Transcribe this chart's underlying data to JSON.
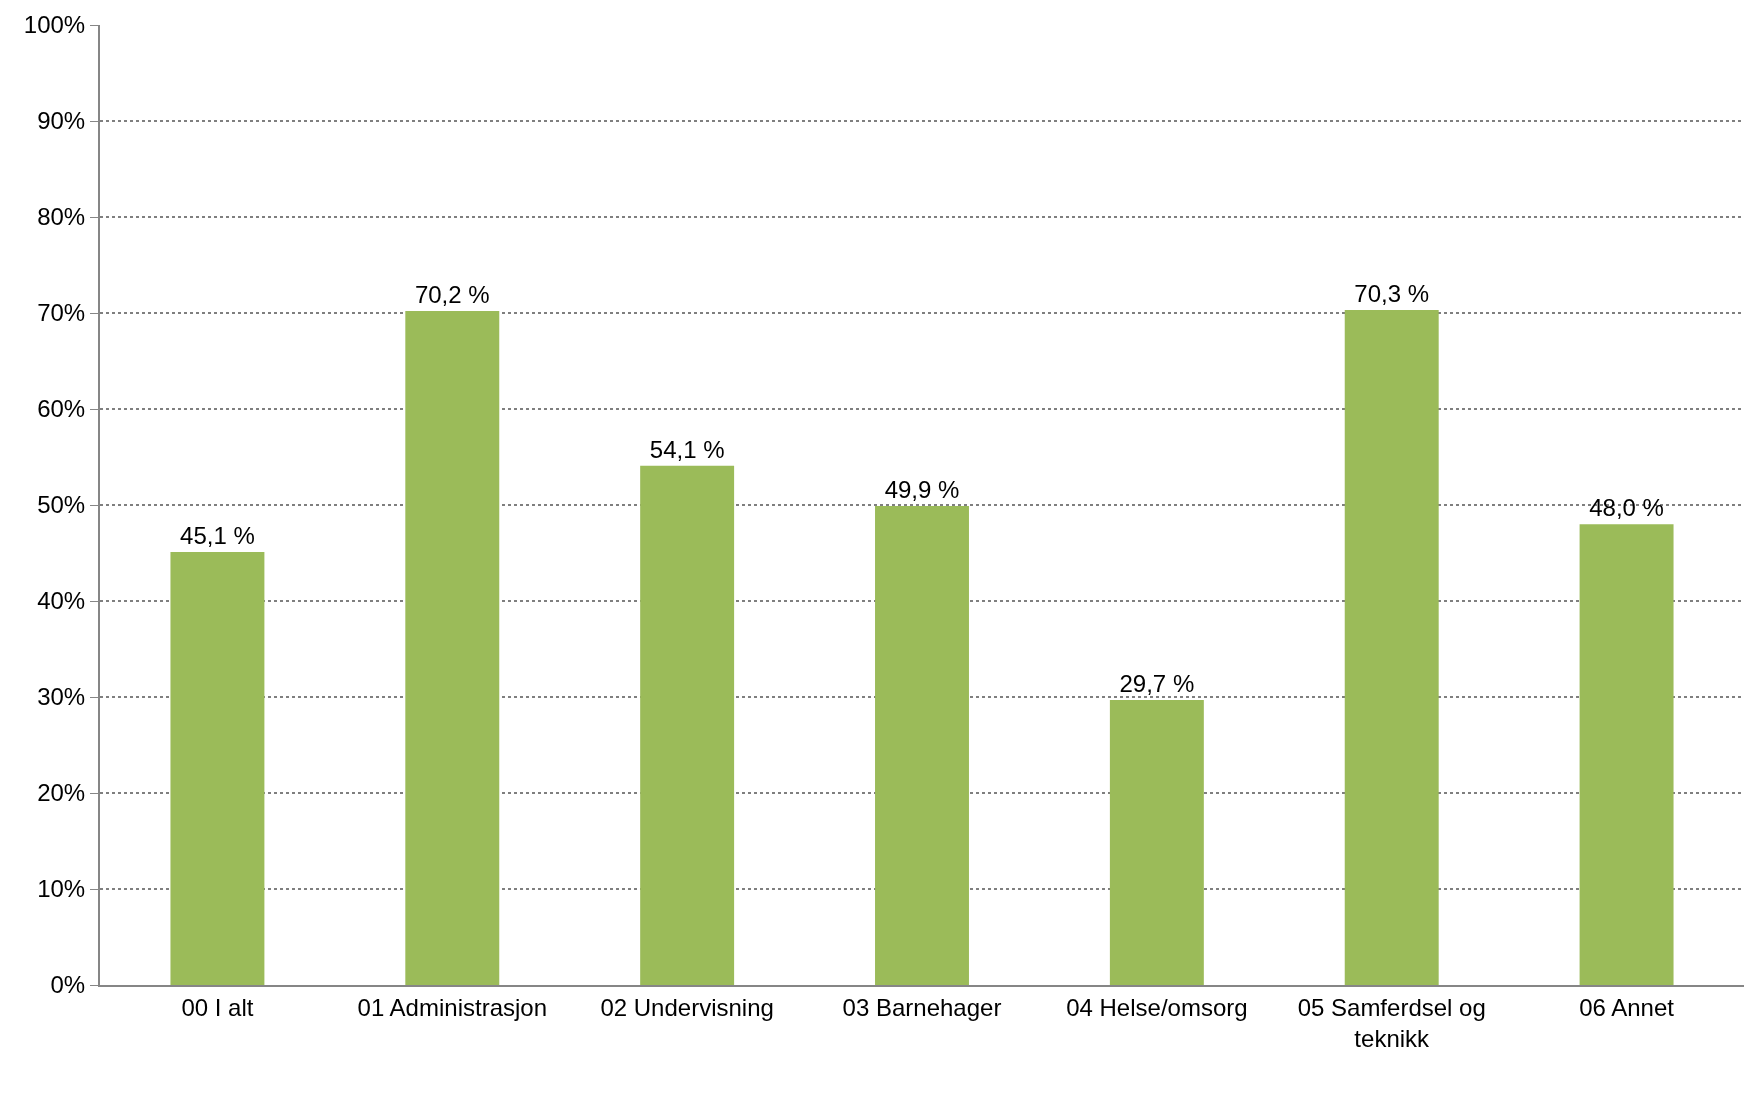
{
  "chart_data": {
    "type": "bar",
    "categories": [
      "00 I alt",
      "01 Administrasjon",
      "02 Undervisning",
      "03 Barnehager",
      "04 Helse/omsorg",
      "05 Samferdsel og teknikk",
      "06 Annet"
    ],
    "values": [
      45.1,
      70.2,
      54.1,
      49.9,
      29.7,
      70.3,
      48.0
    ],
    "value_labels": [
      "45,1 %",
      "70,2 %",
      "54,1 %",
      "49,9 %",
      "29,7 %",
      "70,3 %",
      "48,0 %"
    ],
    "color": "#9bbb59",
    "ylim": [
      0,
      100
    ],
    "yticks": [
      {
        "value": 0,
        "label": "0%"
      },
      {
        "value": 10,
        "label": "10%"
      },
      {
        "value": 20,
        "label": "20%"
      },
      {
        "value": 30,
        "label": "30%"
      },
      {
        "value": 40,
        "label": "40%"
      },
      {
        "value": 50,
        "label": "50%"
      },
      {
        "value": 60,
        "label": "60%"
      },
      {
        "value": 70,
        "label": "70%"
      },
      {
        "value": 80,
        "label": "80%"
      },
      {
        "value": 90,
        "label": "90%"
      },
      {
        "value": 100,
        "label": "100%"
      }
    ],
    "grid": "y"
  }
}
